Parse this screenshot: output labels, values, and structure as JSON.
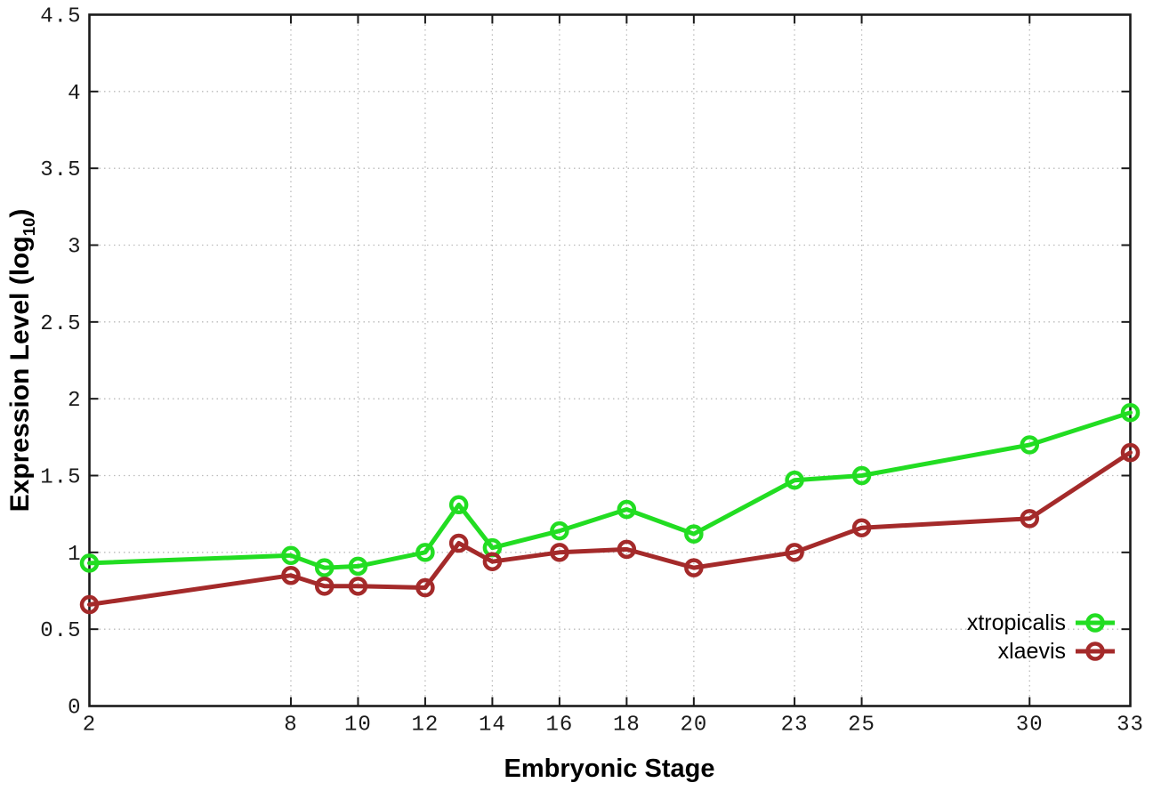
{
  "chart_data": {
    "type": "line",
    "title": "",
    "xlabel": "Embryonic Stage",
    "ylabel_prefix": "Expression Level (log",
    "ylabel_sub": "10",
    "ylabel_suffix": ")",
    "xlim": [
      2,
      33
    ],
    "ylim": [
      0,
      4.5
    ],
    "xticks": [
      2,
      8,
      10,
      12,
      14,
      16,
      18,
      20,
      23,
      25,
      30,
      33
    ],
    "yticks": [
      0,
      0.5,
      1,
      1.5,
      2,
      2.5,
      3,
      3.5,
      4,
      4.5
    ],
    "ytick_labels": [
      "0",
      "0.5",
      "1",
      "1.5",
      "2",
      "2.5",
      "3",
      "3.5",
      "4",
      "4.5"
    ],
    "grid": true,
    "legend_position": "bottom-right-inside",
    "x": [
      2,
      8,
      9,
      10,
      12,
      13,
      14,
      16,
      18,
      20,
      23,
      25,
      30,
      33
    ],
    "series": [
      {
        "name": "xtropicalis",
        "color": "#22dd22",
        "values": [
          0.93,
          0.98,
          0.9,
          0.91,
          1.0,
          1.31,
          1.03,
          1.14,
          1.28,
          1.12,
          1.47,
          1.5,
          1.7,
          1.91
        ]
      },
      {
        "name": "xlaevis",
        "color": "#a42a2a",
        "values": [
          0.66,
          0.85,
          0.78,
          0.78,
          0.77,
          1.06,
          0.94,
          1.0,
          1.02,
          0.9,
          1.0,
          1.16,
          1.22,
          1.65
        ]
      }
    ]
  },
  "colors": {
    "axis": "#1a1a1a",
    "grid": "#bbbbbb",
    "tick_label": "#1a1a1a"
  }
}
